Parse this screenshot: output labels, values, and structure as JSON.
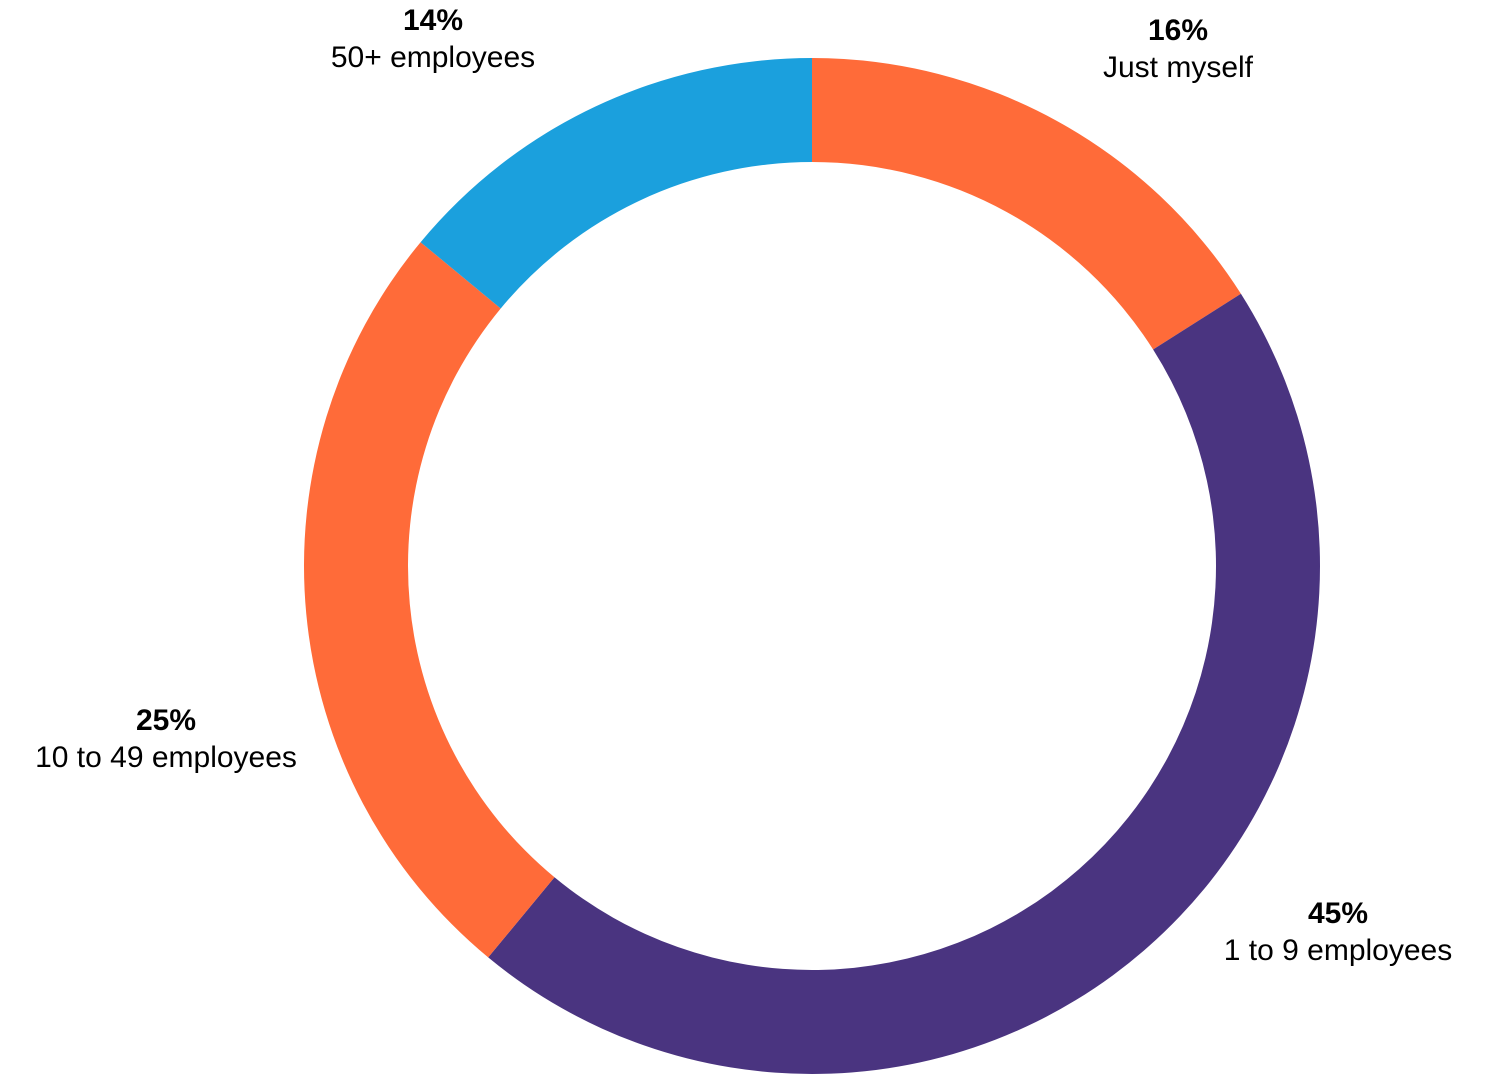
{
  "chart_data": {
    "type": "pie",
    "variant": "donut",
    "start": "12 o'clock, clockwise",
    "grid": false,
    "legend": "none",
    "slices": [
      {
        "label": "Just myself",
        "value": 16,
        "value_label": "16%",
        "color": "#FF6B39"
      },
      {
        "label": "1 to 9 employees",
        "value": 45,
        "value_label": "45%",
        "color": "#4A3480"
      },
      {
        "label": "10 to 49 employees",
        "value": 25,
        "value_label": "25%",
        "color": "#FF6B39"
      },
      {
        "label": "50+ employees",
        "value": 14,
        "value_label": "14%",
        "color": "#1BA0DD"
      }
    ]
  }
}
